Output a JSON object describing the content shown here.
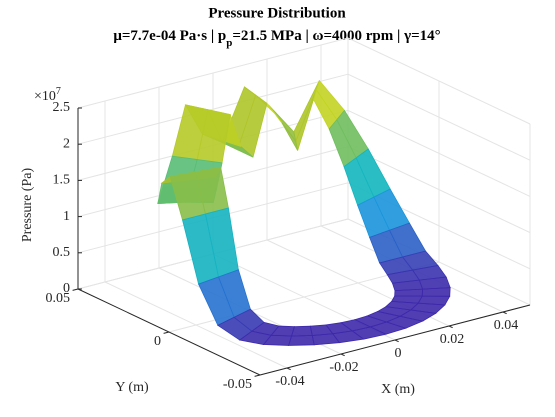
{
  "chart_data": {
    "type": "surface3d",
    "title": "Pressure Distribution",
    "subtitle": [
      "μ=7.7e-04 Pa·s | p",
      "p",
      "=21.5 MPa | ω=4000 rpm | γ=14°"
    ],
    "xlabel": "X (m)",
    "ylabel": "Y (m)",
    "zlabel": "Pressure (Pa)",
    "z_multiplier": "×10",
    "z_multiplier_exponent": "7",
    "xlim": [
      -0.05,
      0.05
    ],
    "ylim": [
      -0.05,
      0.05
    ],
    "zlim": [
      0,
      2.5
    ],
    "xticks": [
      -0.04,
      -0.02,
      0,
      0.02,
      0.04
    ],
    "yticks": [
      -0.05,
      0,
      0.05
    ],
    "zticks": [
      0,
      0.5,
      1,
      1.5,
      2,
      2.5
    ],
    "grid": true,
    "colormap": "parula",
    "surface": {
      "r": [
        0.028,
        0.0365,
        0.045
      ],
      "theta": [
        0,
        10,
        20,
        30,
        40,
        50,
        60,
        70,
        80,
        90,
        100,
        110,
        120,
        130,
        140,
        150,
        160,
        170,
        180,
        190,
        200,
        210,
        220,
        230,
        240,
        250,
        260,
        270,
        280,
        290,
        300,
        310,
        320,
        330,
        340,
        350
      ],
      "z": [
        [
          0.2,
          0.5,
          0.9,
          1.4,
          1.9,
          2.3,
          1.6,
          2.0,
          2.3,
          1.6,
          1.8,
          2.3,
          1.7,
          1.4,
          1.3,
          1.4,
          1.8,
          2.0,
          1.5,
          0.7,
          0.2,
          0.05,
          0.02,
          0.02,
          0.02,
          0.02,
          0.02,
          0.02,
          0.02,
          0.02,
          0.02,
          0.02,
          0.02,
          0.02,
          0.05,
          0.1
        ],
        [
          0.2,
          0.5,
          0.9,
          1.4,
          1.9,
          2.3,
          1.6,
          2.0,
          2.3,
          1.6,
          1.8,
          2.3,
          1.7,
          1.4,
          1.3,
          1.4,
          1.8,
          2.0,
          1.5,
          0.7,
          0.2,
          0.05,
          0.02,
          0.02,
          0.02,
          0.02,
          0.02,
          0.02,
          0.02,
          0.02,
          0.02,
          0.02,
          0.02,
          0.02,
          0.05,
          0.1
        ],
        [
          0.2,
          0.5,
          0.9,
          1.4,
          1.9,
          2.3,
          1.6,
          2.0,
          2.3,
          1.6,
          1.8,
          2.3,
          1.7,
          1.4,
          1.3,
          1.4,
          1.8,
          2.0,
          1.5,
          0.7,
          0.2,
          0.05,
          0.02,
          0.02,
          0.02,
          0.02,
          0.02,
          0.02,
          0.02,
          0.02,
          0.02,
          0.02,
          0.02,
          0.02,
          0.05,
          0.1
        ]
      ]
    }
  }
}
